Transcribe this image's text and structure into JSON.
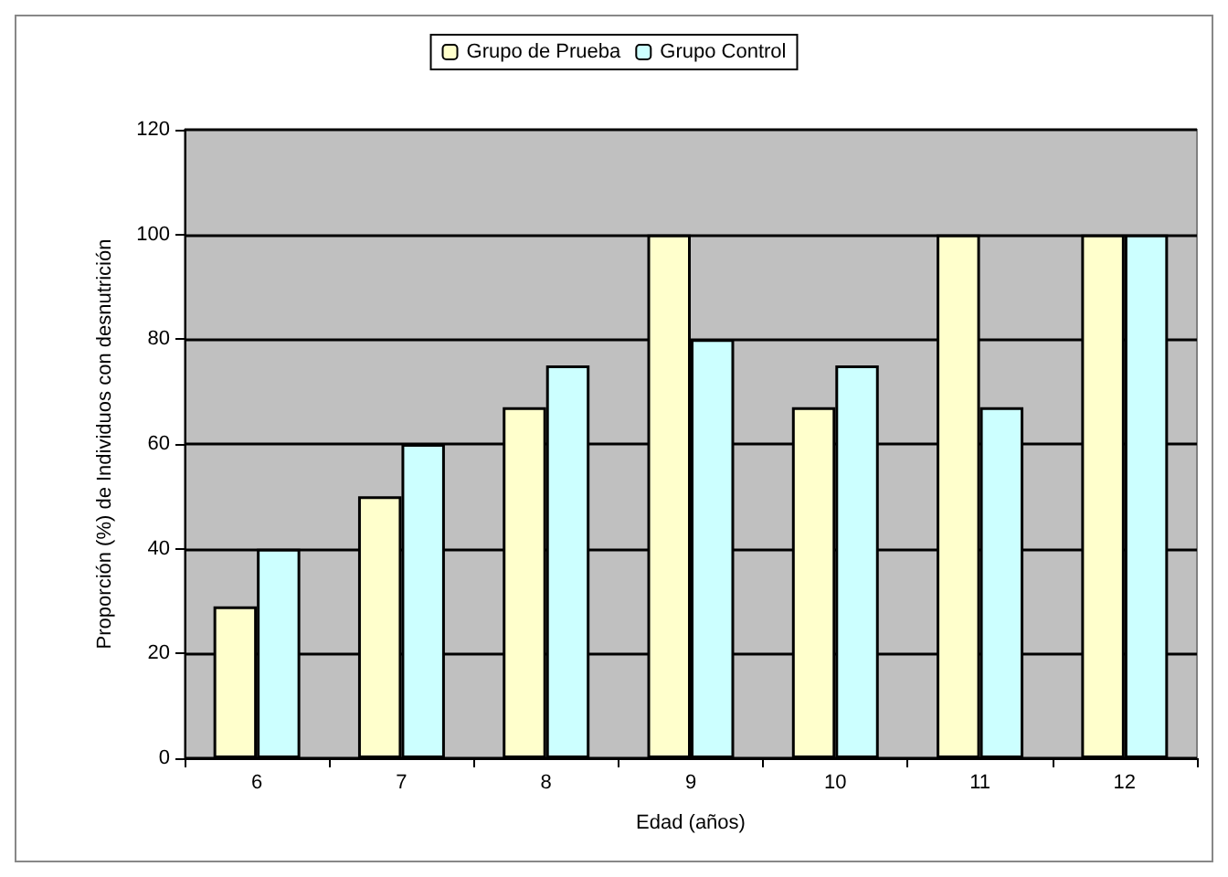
{
  "chart_data": {
    "type": "bar",
    "xlabel": "Edad (años)",
    "ylabel": "Proporción (%) de Individuos con desnutrición",
    "categories": [
      "6",
      "7",
      "8",
      "9",
      "10",
      "11",
      "12"
    ],
    "series": [
      {
        "name": "Grupo de Prueba",
        "color": "#ffffcc",
        "values": [
          29,
          50,
          67,
          100,
          67,
          100,
          100
        ]
      },
      {
        "name": "Grupo Control",
        "color": "#ccffff",
        "values": [
          40,
          60,
          75,
          80,
          75,
          67,
          100
        ]
      }
    ],
    "ylim": [
      0,
      120
    ],
    "yticks": [
      0,
      20,
      40,
      60,
      80,
      100,
      120
    ],
    "grid": "y",
    "legend": "top"
  }
}
